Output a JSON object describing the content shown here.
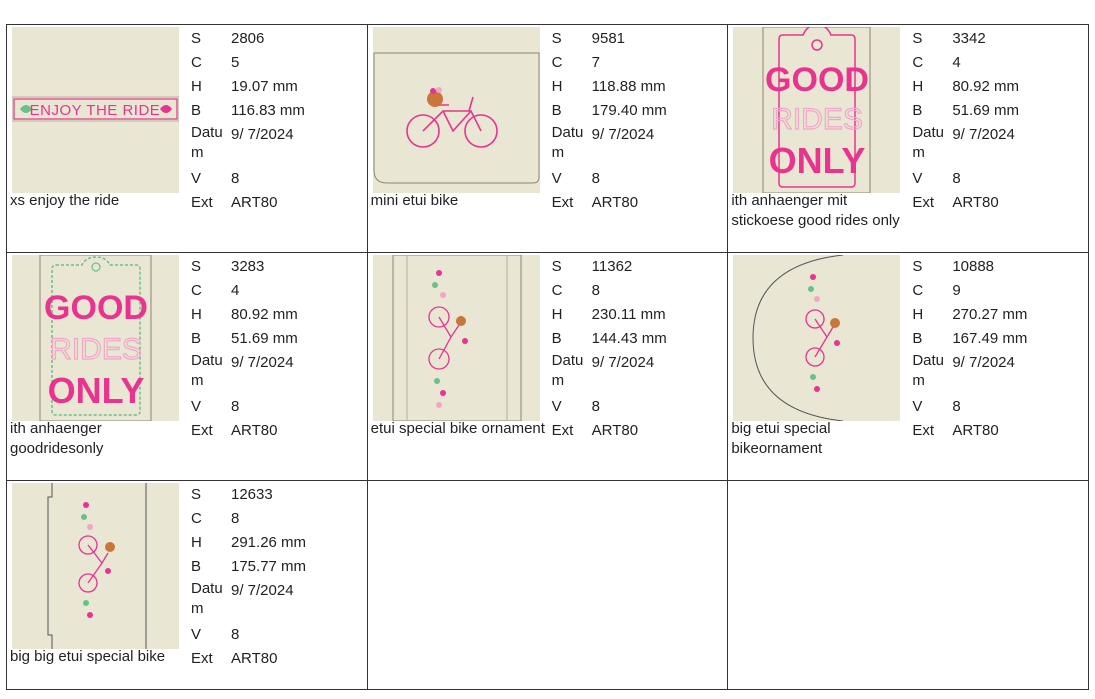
{
  "items": [
    {
      "name": "xs enjoy the ride",
      "thumb_text": "ENJOY THE RIDE",
      "S": "2806",
      "C": "5",
      "H": "19.07 mm",
      "B": "116.83 mm",
      "Datum": "9/ 7/2024",
      "V": "8",
      "Ext": "ART80"
    },
    {
      "name": "mini etui bike",
      "S": "9581",
      "C": "7",
      "H": "118.88 mm",
      "B": "179.40 mm",
      "Datum": "9/ 7/2024",
      "V": "8",
      "Ext": "ART80"
    },
    {
      "name": "ith anhaenger mit stickoese good rides only",
      "thumb_text": [
        "GOOD",
        "RIDES",
        "ONLY"
      ],
      "S": "3342",
      "C": "4",
      "H": "80.92 mm",
      "B": "51.69 mm",
      "Datum": "9/ 7/2024",
      "V": "8",
      "Ext": "ART80"
    },
    {
      "name": "ith anhaenger goodridesonly",
      "thumb_text": [
        "GOOD",
        "RIDES",
        "ONLY"
      ],
      "S": "3283",
      "C": "4",
      "H": "80.92 mm",
      "B": "51.69 mm",
      "Datum": "9/ 7/2024",
      "V": "8",
      "Ext": "ART80"
    },
    {
      "name": "etui special bike ornament",
      "S": "11362",
      "C": "8",
      "H": "230.11 mm",
      "B": "144.43 mm",
      "Datum": "9/ 7/2024",
      "V": "8",
      "Ext": "ART80"
    },
    {
      "name": "big etui special bikeornament",
      "S": "10888",
      "C": "9",
      "H": "270.27 mm",
      "B": "167.49 mm",
      "Datum": "9/ 7/2024",
      "V": "8",
      "Ext": "ART80"
    },
    {
      "name": "big big etui special bike",
      "S": "12633",
      "C": "8",
      "H": "291.26 mm",
      "B": "175.77 mm",
      "Datum": "9/ 7/2024",
      "V": "8",
      "Ext": "ART80"
    }
  ],
  "labels": {
    "S": "S",
    "C": "C",
    "H": "H",
    "B": "B",
    "Datum": "Datum",
    "V": "V",
    "Ext": "Ext"
  },
  "colors": {
    "fabric": "#e9e6d4",
    "pink": "#e8338f",
    "light_pink": "#f2a6c8",
    "green": "#6bbf8a",
    "border": "#333333"
  }
}
